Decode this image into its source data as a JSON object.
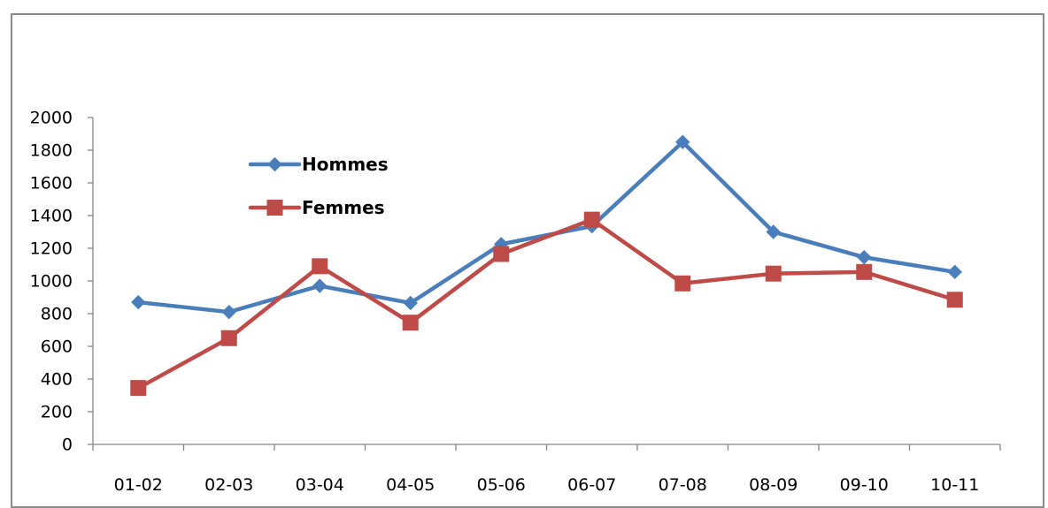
{
  "chart_data": {
    "type": "line",
    "categories": [
      "01-02",
      "02-03",
      "03-04",
      "04-05",
      "05-06",
      "06-07",
      "07-08",
      "08-09",
      "09-10",
      "10-11"
    ],
    "series": [
      {
        "name": "Hommes",
        "values": [
          870,
          810,
          970,
          865,
          1225,
          1335,
          1850,
          1300,
          1145,
          1055
        ],
        "color": "#4a7ebb",
        "marker": "diamond"
      },
      {
        "name": "Femmes",
        "values": [
          345,
          650,
          1090,
          745,
          1165,
          1375,
          985,
          1045,
          1055,
          885
        ],
        "color": "#be4b48",
        "marker": "square"
      }
    ],
    "title": "",
    "xlabel": "",
    "ylabel": "",
    "ylim": [
      0,
      2000
    ],
    "yticks": [
      "0",
      "200",
      "400",
      "600",
      "800",
      "1000",
      "1200",
      "1400",
      "1600",
      "1800",
      "2000"
    ],
    "grid": false,
    "legend_position": "upper-left inside plot"
  }
}
